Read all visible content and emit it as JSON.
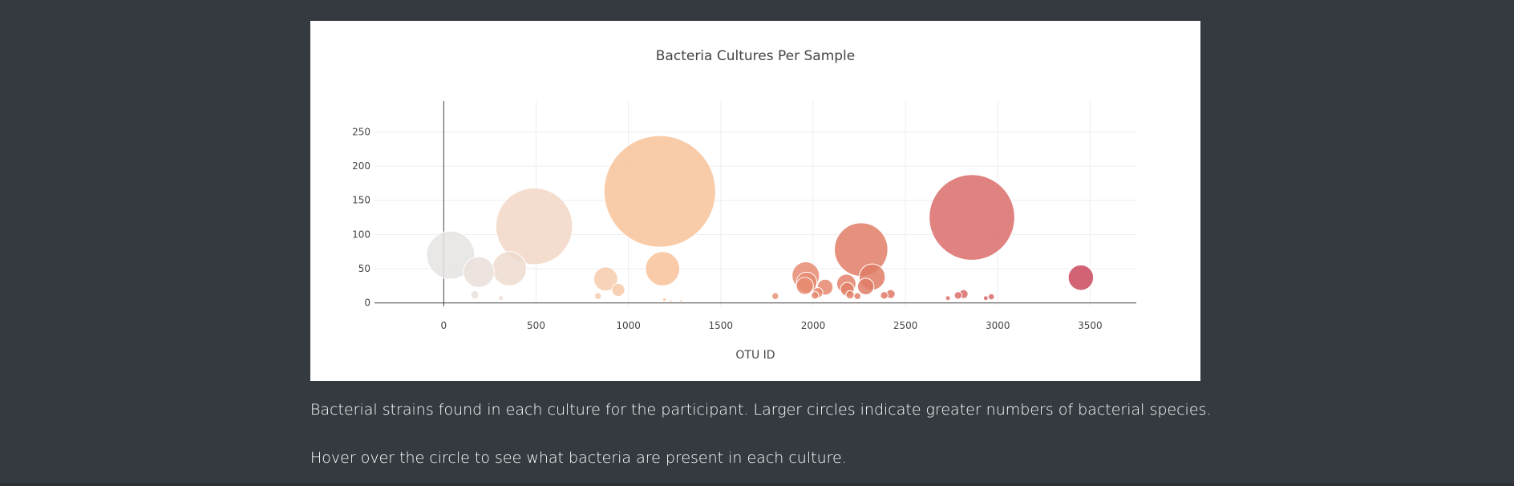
{
  "captions": {
    "line1": "Bacterial strains found in each culture for the participant. Larger circles indicate greater numbers of bacterial species.",
    "line2": "Hover over the circle to see what bacteria are present in each culture."
  },
  "chart_data": {
    "type": "scatter",
    "variant": "bubble",
    "title": "Bacteria Cultures Per Sample",
    "xlabel": "OTU ID",
    "ylabel": "",
    "xlim": [
      -375,
      3750
    ],
    "ylim": [
      -5,
      295
    ],
    "xticks": [
      0,
      500,
      1000,
      1500,
      2000,
      2500,
      3000,
      3500
    ],
    "yticks": [
      0,
      50,
      100,
      150,
      200,
      250
    ],
    "grid": true,
    "colorscale": [
      "#e5e5e5",
      "#f4d4c0",
      "#f8c39a",
      "#ea9478",
      "#e07b65",
      "#da6a6a",
      "#c9455c"
    ],
    "points": [
      {
        "x": 37,
        "y": 70
      },
      {
        "x": 190,
        "y": 45
      },
      {
        "x": 355,
        "y": 50
      },
      {
        "x": 490,
        "y": 112
      },
      {
        "x": 168,
        "y": 12
      },
      {
        "x": 310,
        "y": 7
      },
      {
        "x": 835,
        "y": 10
      },
      {
        "x": 877,
        "y": 35
      },
      {
        "x": 945,
        "y": 19
      },
      {
        "x": 1170,
        "y": 163
      },
      {
        "x": 1185,
        "y": 50
      },
      {
        "x": 1195,
        "y": 5
      },
      {
        "x": 1230,
        "y": 3
      },
      {
        "x": 1285,
        "y": 3
      },
      {
        "x": 1795,
        "y": 10
      },
      {
        "x": 1960,
        "y": 40
      },
      {
        "x": 1965,
        "y": 30
      },
      {
        "x": 1955,
        "y": 25
      },
      {
        "x": 2010,
        "y": 11
      },
      {
        "x": 2025,
        "y": 15
      },
      {
        "x": 2065,
        "y": 23
      },
      {
        "x": 2180,
        "y": 28
      },
      {
        "x": 2185,
        "y": 20
      },
      {
        "x": 2200,
        "y": 12
      },
      {
        "x": 2240,
        "y": 10
      },
      {
        "x": 2260,
        "y": 78
      },
      {
        "x": 2285,
        "y": 24
      },
      {
        "x": 2320,
        "y": 38
      },
      {
        "x": 2385,
        "y": 11
      },
      {
        "x": 2420,
        "y": 13
      },
      {
        "x": 2730,
        "y": 7
      },
      {
        "x": 2785,
        "y": 11
      },
      {
        "x": 2815,
        "y": 13
      },
      {
        "x": 2860,
        "y": 125
      },
      {
        "x": 2935,
        "y": 7
      },
      {
        "x": 2965,
        "y": 9
      },
      {
        "x": 3450,
        "y": 37
      }
    ]
  }
}
